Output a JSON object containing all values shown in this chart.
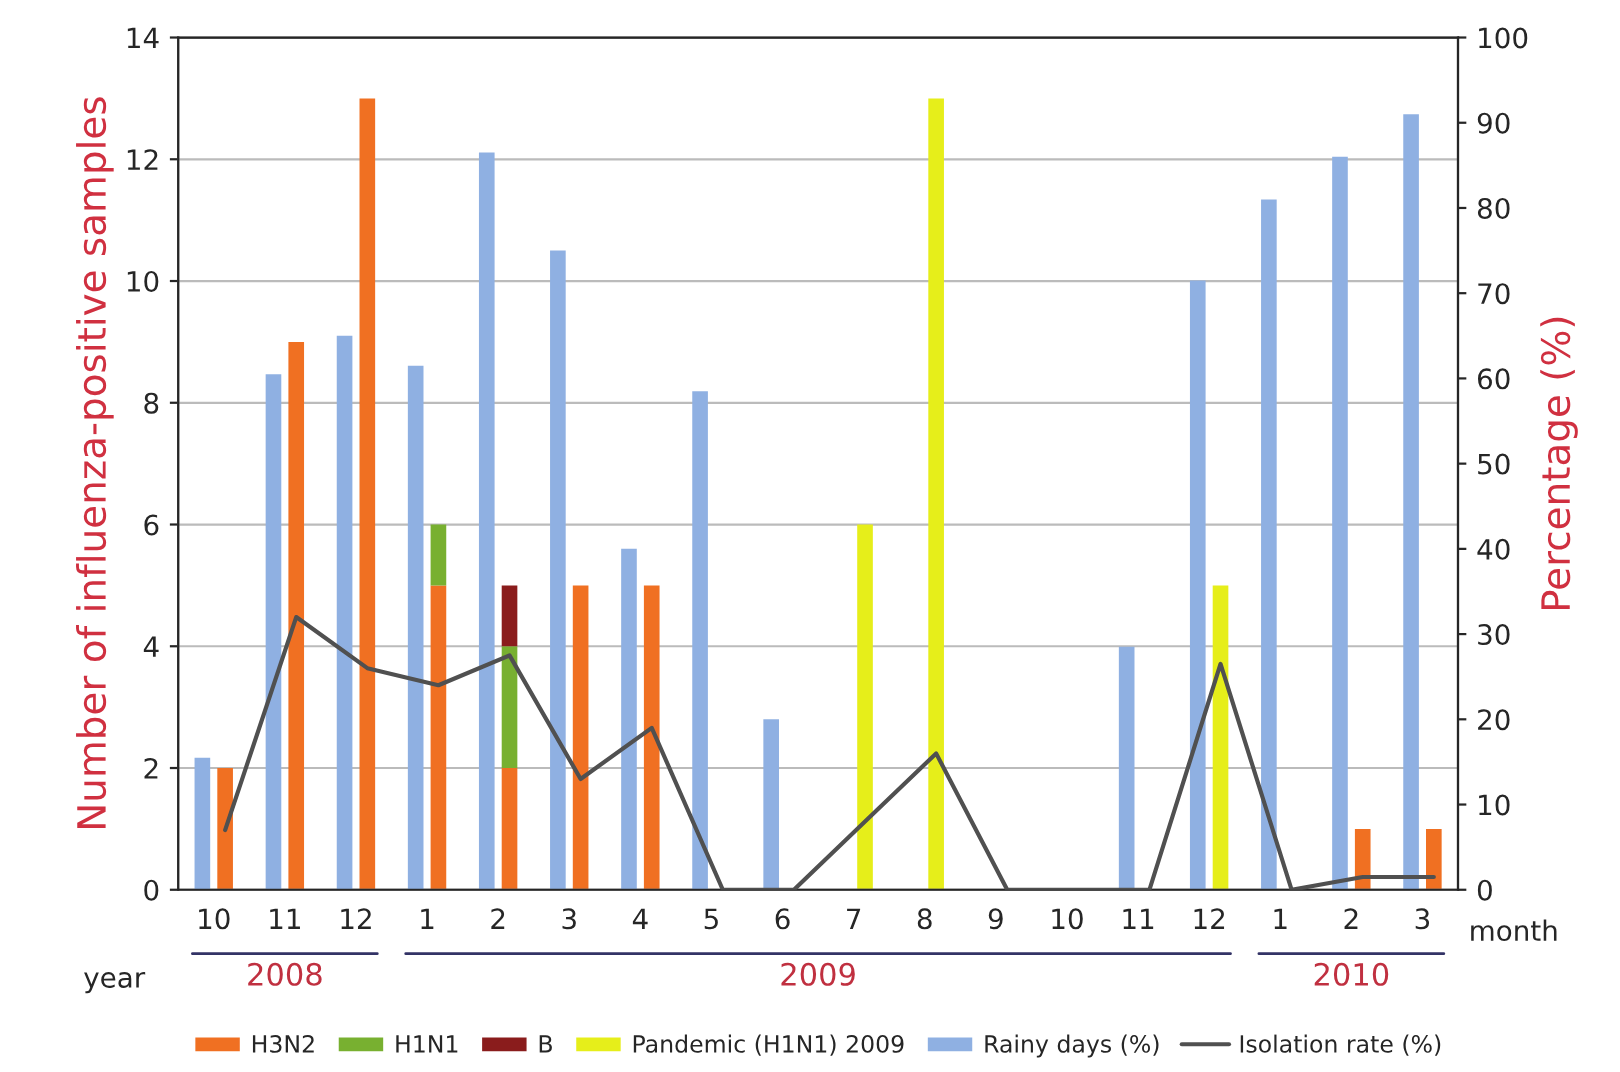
{
  "chart_data": {
    "type": "bar",
    "stacked": true,
    "categories": [
      "10",
      "11",
      "12",
      "1",
      "2",
      "3",
      "4",
      "5",
      "6",
      "7",
      "8",
      "9",
      "10",
      "11",
      "12",
      "1",
      "2",
      "3"
    ],
    "series": [
      {
        "name": "H3N2",
        "color": "#f07022",
        "values": [
          2,
          9,
          13,
          5,
          2,
          5,
          5,
          0,
          0,
          0,
          0,
          0,
          0,
          0,
          0,
          0,
          1,
          1
        ]
      },
      {
        "name": "H1N1",
        "color": "#78b030",
        "values": [
          0,
          0,
          0,
          1,
          2,
          0,
          0,
          0,
          0,
          0,
          0,
          0,
          0,
          0,
          0,
          0,
          0,
          0
        ]
      },
      {
        "name": "B",
        "color": "#8a1c1c",
        "values": [
          0,
          0,
          0,
          0,
          1,
          0,
          0,
          0,
          0,
          0,
          0,
          0,
          0,
          0,
          0,
          0,
          0,
          0
        ]
      },
      {
        "name": "Pandemic (H1N1) 2009",
        "color": "#e6ee1a",
        "values": [
          0,
          0,
          0,
          0,
          0,
          0,
          0,
          0,
          0,
          6,
          13,
          0,
          0,
          0,
          5,
          0,
          0,
          0
        ]
      },
      {
        "name": "Rainy days (%)",
        "axis": "y2",
        "color": "#8fb0e2",
        "values": [
          15.5,
          60.5,
          65,
          61.5,
          86.5,
          75,
          40,
          58.5,
          20,
          null,
          null,
          null,
          null,
          28.5,
          71.5,
          81,
          86,
          91
        ]
      },
      {
        "name": "Isolation rate (%)",
        "type": "line",
        "axis": "y2",
        "color": "#505050",
        "values": [
          7,
          32,
          26,
          24,
          27.5,
          13,
          19,
          0,
          0,
          8,
          16,
          0,
          0,
          0,
          26.5,
          0,
          1.5,
          1.5
        ]
      }
    ],
    "ylabel": "Number of influenza-positive samples",
    "y2label": "Percentage (%)",
    "ylim": [
      0,
      14
    ],
    "yticks": [
      0,
      2,
      4,
      6,
      8,
      10,
      12,
      14
    ],
    "y2lim": [
      0,
      100
    ],
    "y2ticks": [
      0,
      10,
      20,
      30,
      40,
      50,
      60,
      70,
      80,
      90,
      100
    ],
    "annotations": [
      "month",
      "year",
      "2008",
      "2009",
      "2010"
    ],
    "grid": "y",
    "legend": "bottom"
  }
}
